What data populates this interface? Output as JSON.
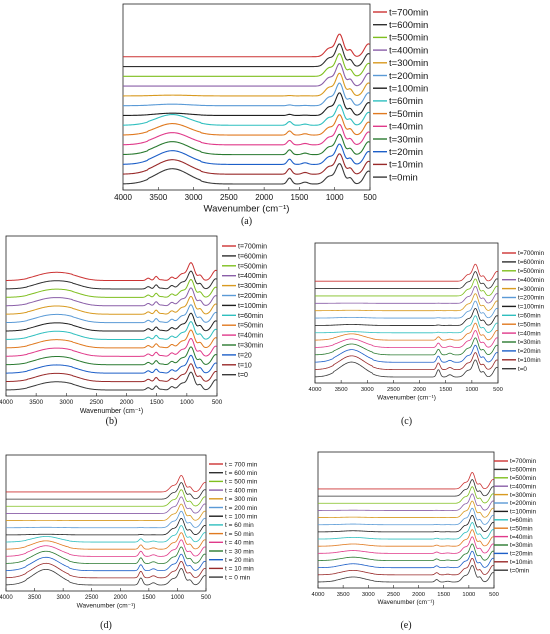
{
  "colors": {
    "time_series": [
      "#cc3333",
      "#303030",
      "#7fbf1f",
      "#8a5fa8",
      "#d89a20",
      "#5a9ad6",
      "#1f1f1f",
      "#2fbfbf",
      "#e07a20",
      "#e03a8a",
      "#2a7a30",
      "#1d5fc8",
      "#992a2a",
      "#3a3a3a"
    ]
  },
  "chart_data": [
    {
      "type": "line",
      "caption": "(a)",
      "title": "",
      "xlabel": "Wavenumber (cm⁻¹)",
      "ylabel": "",
      "xlim": [
        4000,
        500
      ],
      "x_ticks": [
        4000,
        3500,
        3000,
        2500,
        2000,
        1500,
        1000,
        500
      ],
      "y_ticks": false,
      "grid": false,
      "legend_position": "right",
      "series": [
        {
          "name": "t=700min",
          "profile": {
            "oh": 0.0,
            "band1640": 0.0,
            "band1000": 1.0
          }
        },
        {
          "name": "t=600min",
          "profile": {
            "oh": 0.0,
            "band1640": 0.0,
            "band1000": 1.0
          }
        },
        {
          "name": "t=500min",
          "profile": {
            "oh": 0.0,
            "band1640": 0.0,
            "band1000": 1.0
          }
        },
        {
          "name": "t=400min",
          "profile": {
            "oh": 0.0,
            "band1640": 0.0,
            "band1000": 1.0
          }
        },
        {
          "name": "t=300min",
          "profile": {
            "oh": 0.05,
            "band1640": 0.05,
            "band1000": 1.0
          }
        },
        {
          "name": "t=200min",
          "profile": {
            "oh": 0.1,
            "band1640": 0.1,
            "band1000": 1.0
          }
        },
        {
          "name": "t=100min",
          "profile": {
            "oh": 0.15,
            "band1640": 0.15,
            "band1000": 1.0
          }
        },
        {
          "name": "t=60min",
          "profile": {
            "oh": 0.7,
            "band1640": 0.5,
            "band1000": 0.9
          }
        },
        {
          "name": "t=50min",
          "profile": {
            "oh": 0.75,
            "band1640": 0.55,
            "band1000": 0.9
          }
        },
        {
          "name": "t=40min",
          "profile": {
            "oh": 0.8,
            "band1640": 0.6,
            "band1000": 0.9
          }
        },
        {
          "name": "t=30min",
          "profile": {
            "oh": 0.85,
            "band1640": 0.65,
            "band1000": 0.9
          }
        },
        {
          "name": "t=20min",
          "profile": {
            "oh": 0.9,
            "band1640": 0.7,
            "band1000": 0.9
          }
        },
        {
          "name": "t=10min",
          "profile": {
            "oh": 0.95,
            "band1640": 0.75,
            "band1000": 0.9
          }
        },
        {
          "name": "t=0min",
          "profile": {
            "oh": 1.0,
            "band1640": 0.8,
            "band1000": 0.9
          }
        }
      ]
    },
    {
      "type": "line",
      "caption": "(b)",
      "title": "",
      "xlabel": "Wavenumber (cm⁻¹)",
      "ylabel": "",
      "xlim": [
        4000,
        500
      ],
      "x_ticks": [
        4000,
        3500,
        3000,
        2500,
        2000,
        1500,
        1000,
        500
      ],
      "y_ticks": false,
      "grid": false,
      "legend_position": "right",
      "series": [
        {
          "name": "t=700min",
          "profile": {
            "oh": 0.55,
            "band1640": 0.4,
            "band1000": 1.0
          }
        },
        {
          "name": "t=600min",
          "profile": {
            "oh": 0.55,
            "band1640": 0.4,
            "band1000": 1.0
          }
        },
        {
          "name": "t=500min",
          "profile": {
            "oh": 0.55,
            "band1640": 0.4,
            "band1000": 1.0
          }
        },
        {
          "name": "t=400min",
          "profile": {
            "oh": 0.55,
            "band1640": 0.4,
            "band1000": 1.0
          }
        },
        {
          "name": "t=300min",
          "profile": {
            "oh": 0.55,
            "band1640": 0.4,
            "band1000": 1.0
          }
        },
        {
          "name": "t=200min",
          "profile": {
            "oh": 0.55,
            "band1640": 0.4,
            "band1000": 1.0
          }
        },
        {
          "name": "t=100min",
          "profile": {
            "oh": 0.55,
            "band1640": 0.4,
            "band1000": 1.0
          }
        },
        {
          "name": "t=60min",
          "profile": {
            "oh": 0.55,
            "band1640": 0.4,
            "band1000": 1.0
          }
        },
        {
          "name": "t=50min",
          "profile": {
            "oh": 0.55,
            "band1640": 0.4,
            "band1000": 1.0
          }
        },
        {
          "name": "t=40min",
          "profile": {
            "oh": 0.55,
            "band1640": 0.4,
            "band1000": 1.0
          }
        },
        {
          "name": "t=30min",
          "profile": {
            "oh": 0.55,
            "band1640": 0.4,
            "band1000": 1.0
          }
        },
        {
          "name": "t=20",
          "profile": {
            "oh": 0.55,
            "band1640": 0.4,
            "band1000": 1.0
          }
        },
        {
          "name": "t=10",
          "profile": {
            "oh": 0.55,
            "band1640": 0.4,
            "band1000": 1.0
          }
        },
        {
          "name": "t=0",
          "profile": {
            "oh": 0.55,
            "band1640": 0.4,
            "band1000": 1.0
          }
        }
      ]
    },
    {
      "type": "line",
      "caption": "(c)",
      "title": "",
      "xlabel": "Wavenumber (cm⁻¹)",
      "ylabel": "",
      "xlim": [
        4000,
        500
      ],
      "x_ticks": [
        4000,
        3500,
        3000,
        2500,
        2000,
        1500,
        1000,
        500
      ],
      "y_ticks": false,
      "grid": false,
      "legend_position": "right",
      "series": [
        {
          "name": "t=700min",
          "profile": {
            "oh": 0.0,
            "band1640": 0.0,
            "band1000": 1.0
          }
        },
        {
          "name": "t=600min",
          "profile": {
            "oh": 0.0,
            "band1640": 0.0,
            "band1000": 1.0
          }
        },
        {
          "name": "t=500min",
          "profile": {
            "oh": 0.0,
            "band1640": 0.0,
            "band1000": 1.0
          }
        },
        {
          "name": "t=400min",
          "profile": {
            "oh": 0.02,
            "band1640": 0.02,
            "band1000": 1.0
          }
        },
        {
          "name": "t=300min",
          "profile": {
            "oh": 0.04,
            "band1640": 0.04,
            "band1000": 1.0
          }
        },
        {
          "name": "t=200min",
          "profile": {
            "oh": 0.06,
            "band1640": 0.06,
            "band1000": 1.0
          }
        },
        {
          "name": "t=100min",
          "profile": {
            "oh": 0.08,
            "band1640": 0.08,
            "band1000": 1.0
          }
        },
        {
          "name": "t=60min",
          "profile": {
            "oh": 0.1,
            "band1640": 0.1,
            "band1000": 1.0
          }
        },
        {
          "name": "t=50min",
          "profile": {
            "oh": 0.55,
            "band1640": 0.6,
            "band1000": 1.0
          }
        },
        {
          "name": "t=40min",
          "profile": {
            "oh": 0.75,
            "band1640": 0.8,
            "band1000": 1.0
          }
        },
        {
          "name": "t=30min",
          "profile": {
            "oh": 0.95,
            "band1640": 1.0,
            "band1000": 1.0
          }
        },
        {
          "name": "t=20min",
          "profile": {
            "oh": 1.1,
            "band1640": 1.1,
            "band1000": 1.0
          }
        },
        {
          "name": "t=10min",
          "profile": {
            "oh": 1.2,
            "band1640": 1.2,
            "band1000": 1.0
          }
        },
        {
          "name": "t=0",
          "profile": {
            "oh": 1.3,
            "band1640": 1.3,
            "band1000": 1.0
          }
        }
      ]
    },
    {
      "type": "line",
      "caption": "(d)",
      "title": "",
      "xlabel": "Wavenumber (cm⁻¹)",
      "ylabel": "",
      "xlim": [
        4000,
        500
      ],
      "x_ticks": [
        4000,
        3500,
        3000,
        2500,
        2000,
        1500,
        1000,
        500
      ],
      "y_ticks": false,
      "grid": false,
      "legend_position": "right",
      "series": [
        {
          "name": "t = 700 min",
          "profile": {
            "oh": 0.0,
            "band1640": 0.0,
            "band1000": 1.0
          }
        },
        {
          "name": "t = 600 min",
          "profile": {
            "oh": 0.0,
            "band1640": 0.0,
            "band1000": 1.0
          }
        },
        {
          "name": "t = 500 min",
          "profile": {
            "oh": 0.0,
            "band1640": 0.0,
            "band1000": 1.0
          }
        },
        {
          "name": "t = 400 min",
          "profile": {
            "oh": 0.0,
            "band1640": 0.0,
            "band1000": 1.0
          }
        },
        {
          "name": "t = 300 min",
          "profile": {
            "oh": 0.02,
            "band1640": 0.02,
            "band1000": 1.0
          }
        },
        {
          "name": "t = 200 min",
          "profile": {
            "oh": 0.04,
            "band1640": 0.04,
            "band1000": 1.0
          }
        },
        {
          "name": "t = 100 min",
          "profile": {
            "oh": 0.06,
            "band1640": 0.06,
            "band1000": 1.0
          }
        },
        {
          "name": "t = 60 min",
          "profile": {
            "oh": 0.5,
            "band1640": 0.6,
            "band1000": 1.0
          }
        },
        {
          "name": "t = 50 min",
          "profile": {
            "oh": 0.75,
            "band1640": 0.8,
            "band1000": 1.0
          }
        },
        {
          "name": "t = 40 min",
          "profile": {
            "oh": 0.95,
            "band1640": 0.95,
            "band1000": 1.0
          }
        },
        {
          "name": "t = 30 min",
          "profile": {
            "oh": 1.1,
            "band1640": 1.05,
            "band1000": 1.0
          }
        },
        {
          "name": "t = 20 min",
          "profile": {
            "oh": 1.2,
            "band1640": 1.1,
            "band1000": 1.0
          }
        },
        {
          "name": "t = 10 min",
          "profile": {
            "oh": 1.3,
            "band1640": 1.2,
            "band1000": 1.0
          }
        },
        {
          "name": "t = 0 min",
          "profile": {
            "oh": 1.4,
            "band1640": 1.3,
            "band1000": 1.0
          }
        }
      ]
    },
    {
      "type": "line",
      "caption": "(e)",
      "title": "",
      "xlabel": "Wavenumber (cm⁻¹)",
      "ylabel": "",
      "xlim": [
        4000,
        500
      ],
      "x_ticks": [
        4000,
        3500,
        3000,
        2500,
        2000,
        1500,
        1000,
        500
      ],
      "y_ticks": false,
      "grid": false,
      "legend_position": "right",
      "series": [
        {
          "name": "t=700min",
          "profile": {
            "oh": 0.0,
            "band1640": 0.0,
            "band1000": 1.0
          }
        },
        {
          "name": "t=600min",
          "profile": {
            "oh": 0.0,
            "band1640": 0.0,
            "band1000": 1.0
          }
        },
        {
          "name": "t=500min",
          "profile": {
            "oh": 0.0,
            "band1640": 0.0,
            "band1000": 1.0
          }
        },
        {
          "name": "t=400min",
          "profile": {
            "oh": 0.02,
            "band1640": 0.02,
            "band1000": 1.0
          }
        },
        {
          "name": "t=300min",
          "profile": {
            "oh": 0.04,
            "band1640": 0.04,
            "band1000": 1.0
          }
        },
        {
          "name": "t=200min",
          "profile": {
            "oh": 0.06,
            "band1640": 0.06,
            "band1000": 1.0
          }
        },
        {
          "name": "t=100min",
          "profile": {
            "oh": 0.1,
            "band1640": 0.1,
            "band1000": 1.0
          }
        },
        {
          "name": "t=60min",
          "profile": {
            "oh": 0.15,
            "band1640": 0.15,
            "band1000": 1.0
          }
        },
        {
          "name": "t=50min",
          "profile": {
            "oh": 0.2,
            "band1640": 0.2,
            "band1000": 1.0
          }
        },
        {
          "name": "t=40min",
          "profile": {
            "oh": 0.25,
            "band1640": 0.25,
            "band1000": 1.0
          }
        },
        {
          "name": "t=30min",
          "profile": {
            "oh": 0.3,
            "band1640": 0.3,
            "band1000": 1.0
          }
        },
        {
          "name": "t=20min",
          "profile": {
            "oh": 0.35,
            "band1640": 0.35,
            "band1000": 1.0
          }
        },
        {
          "name": "t=10min",
          "profile": {
            "oh": 0.4,
            "band1640": 0.4,
            "band1000": 1.0
          }
        },
        {
          "name": "t=0min",
          "profile": {
            "oh": 0.45,
            "band1640": 0.45,
            "band1000": 1.0
          }
        }
      ]
    }
  ]
}
